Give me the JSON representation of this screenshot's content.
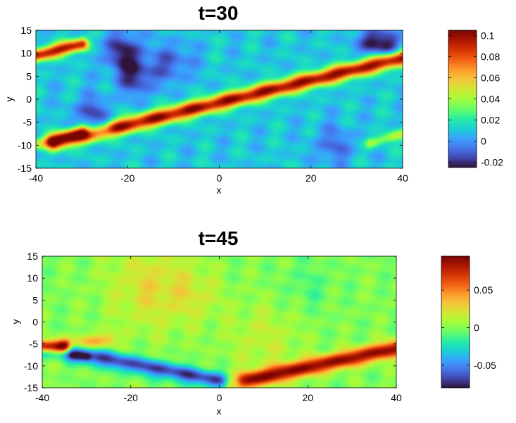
{
  "chart_data": [
    {
      "type": "heatmap",
      "title": "t=30",
      "xlabel": "x",
      "ylabel": "y",
      "xlim": [
        -40,
        40
      ],
      "ylim": [
        -15,
        15
      ],
      "xticks": [
        -40,
        -20,
        0,
        20,
        40
      ],
      "yticks": [
        -15,
        -10,
        -5,
        0,
        5,
        10,
        15
      ],
      "colormap": "jet-like (dark blue to dark red)",
      "colorbar": {
        "range": [
          -0.025,
          0.105
        ],
        "ticks": [
          -0.02,
          0,
          0.02,
          0.04,
          0.06,
          0.08,
          0.1
        ],
        "tick_labels": [
          "-0.02",
          "0",
          "0.02",
          "0.04",
          "0.06",
          "0.08",
          "0.1"
        ]
      },
      "background_value": 0.01,
      "features": [
        {
          "kind": "ridge",
          "x": [
            -36,
            40
          ],
          "y": [
            -9.5,
            9
          ],
          "peak": 0.1,
          "width": 1.2
        },
        {
          "kind": "ridge",
          "x": [
            -40,
            -30
          ],
          "y": [
            9.5,
            12
          ],
          "peak": 0.095,
          "width": 1.0
        },
        {
          "kind": "ridge",
          "x": [
            -40,
            -30
          ],
          "y": [
            -10,
            -7
          ],
          "peak": 0.065,
          "width": 1.0
        },
        {
          "kind": "trough",
          "x": [
            -40,
            -25
          ],
          "y": [
            -10.5,
            -6
          ],
          "peak": -0.012,
          "width": 1.2
        },
        {
          "kind": "ridge",
          "x": [
            33,
            40
          ],
          "y": [
            -9.5,
            -7.5
          ],
          "peak": 0.04,
          "width": 0.8
        },
        {
          "kind": "blob",
          "x": -21,
          "y": 10.5,
          "peak": -0.02,
          "size": 3
        },
        {
          "kind": "blob",
          "x": -18,
          "y": 5,
          "peak": -0.018,
          "size": 3
        },
        {
          "kind": "blob",
          "x": -28,
          "y": -3,
          "peak": -0.015,
          "size": 2.5
        },
        {
          "kind": "blob",
          "x": 33,
          "y": 12.5,
          "peak": -0.022,
          "size": 2
        },
        {
          "kind": "blob",
          "x": 37,
          "y": 12,
          "peak": -0.018,
          "size": 2
        },
        {
          "kind": "blob",
          "x": -10,
          "y": 8,
          "peak": -0.01,
          "size": 3
        },
        {
          "kind": "blob",
          "x": 25,
          "y": -10,
          "peak": -0.008,
          "size": 3
        }
      ]
    },
    {
      "type": "heatmap",
      "title": "t=45",
      "xlabel": "x",
      "ylabel": "y",
      "xlim": [
        -40,
        40
      ],
      "ylim": [
        -15,
        15
      ],
      "xticks": [
        -40,
        -20,
        0,
        20,
        40
      ],
      "yticks": [
        -15,
        -10,
        -5,
        0,
        5,
        10,
        15
      ],
      "colormap": "jet-like (dark blue to dark red)",
      "colorbar": {
        "range": [
          -0.08,
          0.095
        ],
        "ticks": [
          -0.05,
          0,
          0.05
        ],
        "tick_labels": [
          "-0.05",
          "0",
          "0.05"
        ]
      },
      "background_value": 0.0,
      "features": [
        {
          "kind": "trough",
          "x": [
            -33,
            3
          ],
          "y": [
            -7,
            -14
          ],
          "peak": -0.07,
          "width": 1.3
        },
        {
          "kind": "ridge",
          "x": [
            3,
            40
          ],
          "y": [
            -14,
            -6
          ],
          "peak": 0.09,
          "width": 1.3
        },
        {
          "kind": "ridge",
          "x": [
            -40,
            -35
          ],
          "y": [
            -5.5,
            -5.5
          ],
          "peak": 0.08,
          "width": 1.0
        },
        {
          "kind": "ridge",
          "x": [
            -35,
            -25
          ],
          "y": [
            -5.5,
            -4
          ],
          "peak": 0.035,
          "width": 1.2
        },
        {
          "kind": "trough",
          "x": [
            -40,
            -30
          ],
          "y": [
            -7,
            -8
          ],
          "peak": -0.03,
          "width": 0.8
        },
        {
          "kind": "blob",
          "x": -15,
          "y": 8,
          "peak": 0.025,
          "size": 7
        },
        {
          "kind": "blob",
          "x": 10,
          "y": -4,
          "peak": 0.015,
          "size": 6
        },
        {
          "kind": "blob",
          "x": -5,
          "y": 6,
          "peak": 0.012,
          "size": 4
        },
        {
          "kind": "blob",
          "x": 20,
          "y": 8,
          "peak": -0.01,
          "size": 4
        }
      ]
    }
  ]
}
